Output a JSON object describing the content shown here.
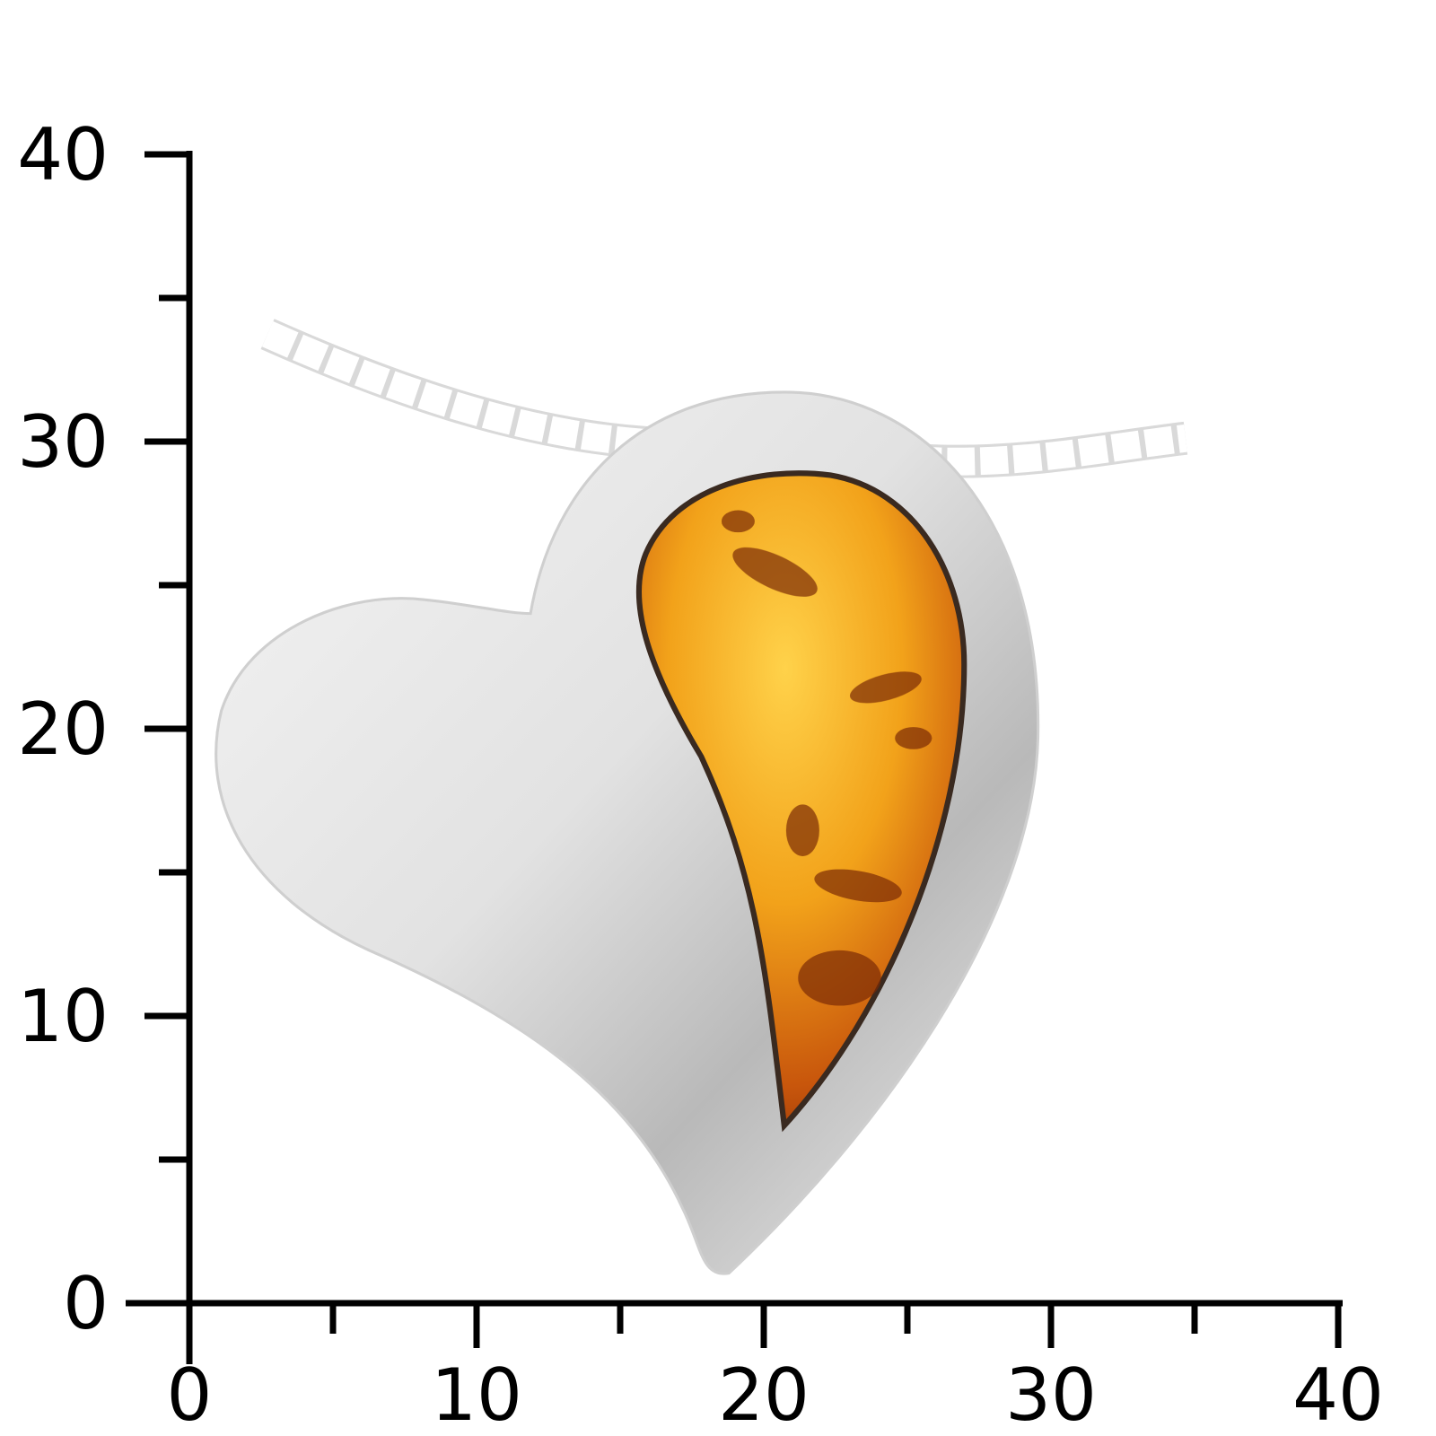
{
  "x_axis": {
    "ticks": [
      0,
      10,
      20,
      30,
      40
    ],
    "minor_ticks": [
      5,
      15,
      25,
      35
    ],
    "lim": [
      0,
      40
    ]
  },
  "y_axis": {
    "ticks": [
      0,
      10,
      20,
      30,
      40
    ],
    "minor_ticks": [
      5,
      15,
      25,
      35
    ],
    "lim": [
      0,
      40
    ]
  }
}
